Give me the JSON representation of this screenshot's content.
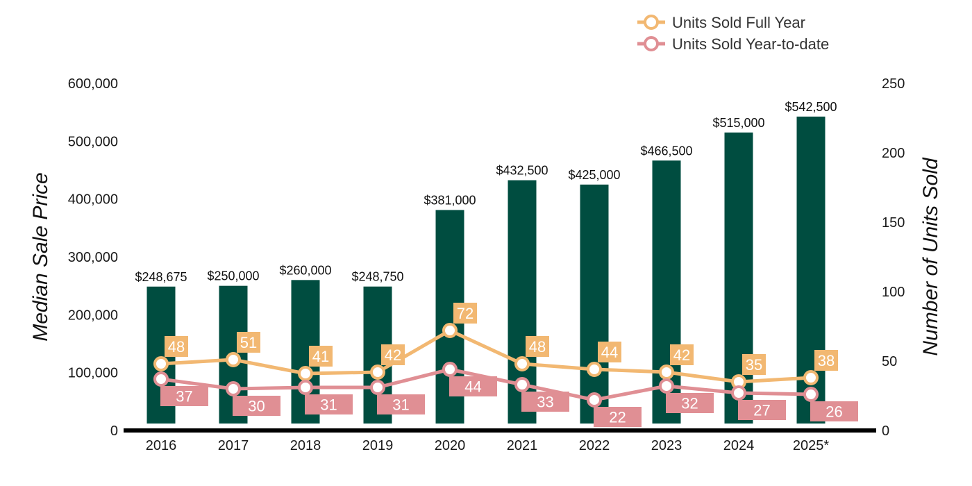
{
  "chart_data": {
    "type": "bar",
    "categories": [
      "2016",
      "2017",
      "2018",
      "2019",
      "2020",
      "2021",
      "2022",
      "2023",
      "2024",
      "2025*"
    ],
    "bar_series": {
      "values": [
        248675,
        250000,
        260000,
        248750,
        381000,
        432500,
        425000,
        466500,
        515000,
        542500
      ],
      "labels": [
        "$248,675",
        "$250,000",
        "$260,000",
        "$248,750",
        "$381,000",
        "$432,500",
        "$425,000",
        "$466,500",
        "$515,000",
        "$542,500"
      ],
      "color": "#004d40"
    },
    "line_series": [
      {
        "name": "Units Sold Full Year",
        "values": [
          48,
          51,
          41,
          42,
          72,
          48,
          44,
          42,
          35,
          38
        ],
        "color": "#f2b872",
        "label_position": "above"
      },
      {
        "name": "Units Sold Year-to-date",
        "values": [
          37,
          30,
          31,
          31,
          44,
          33,
          22,
          32,
          27,
          26
        ],
        "color": "#e08f94",
        "label_position": "below"
      }
    ],
    "ylabel_left": "Median Sale Price",
    "ylabel_right": "Number of Units Sold",
    "ylim_left": [
      0,
      600000
    ],
    "ylim_right": [
      0,
      250
    ],
    "yticks_left": [
      "0",
      "100,000",
      "200,000",
      "300,000",
      "400,000",
      "500,000",
      "600,000"
    ],
    "yticks_right": [
      "0",
      "50",
      "100",
      "150",
      "200",
      "250"
    ],
    "grid": false,
    "legend_position": "top-right"
  }
}
